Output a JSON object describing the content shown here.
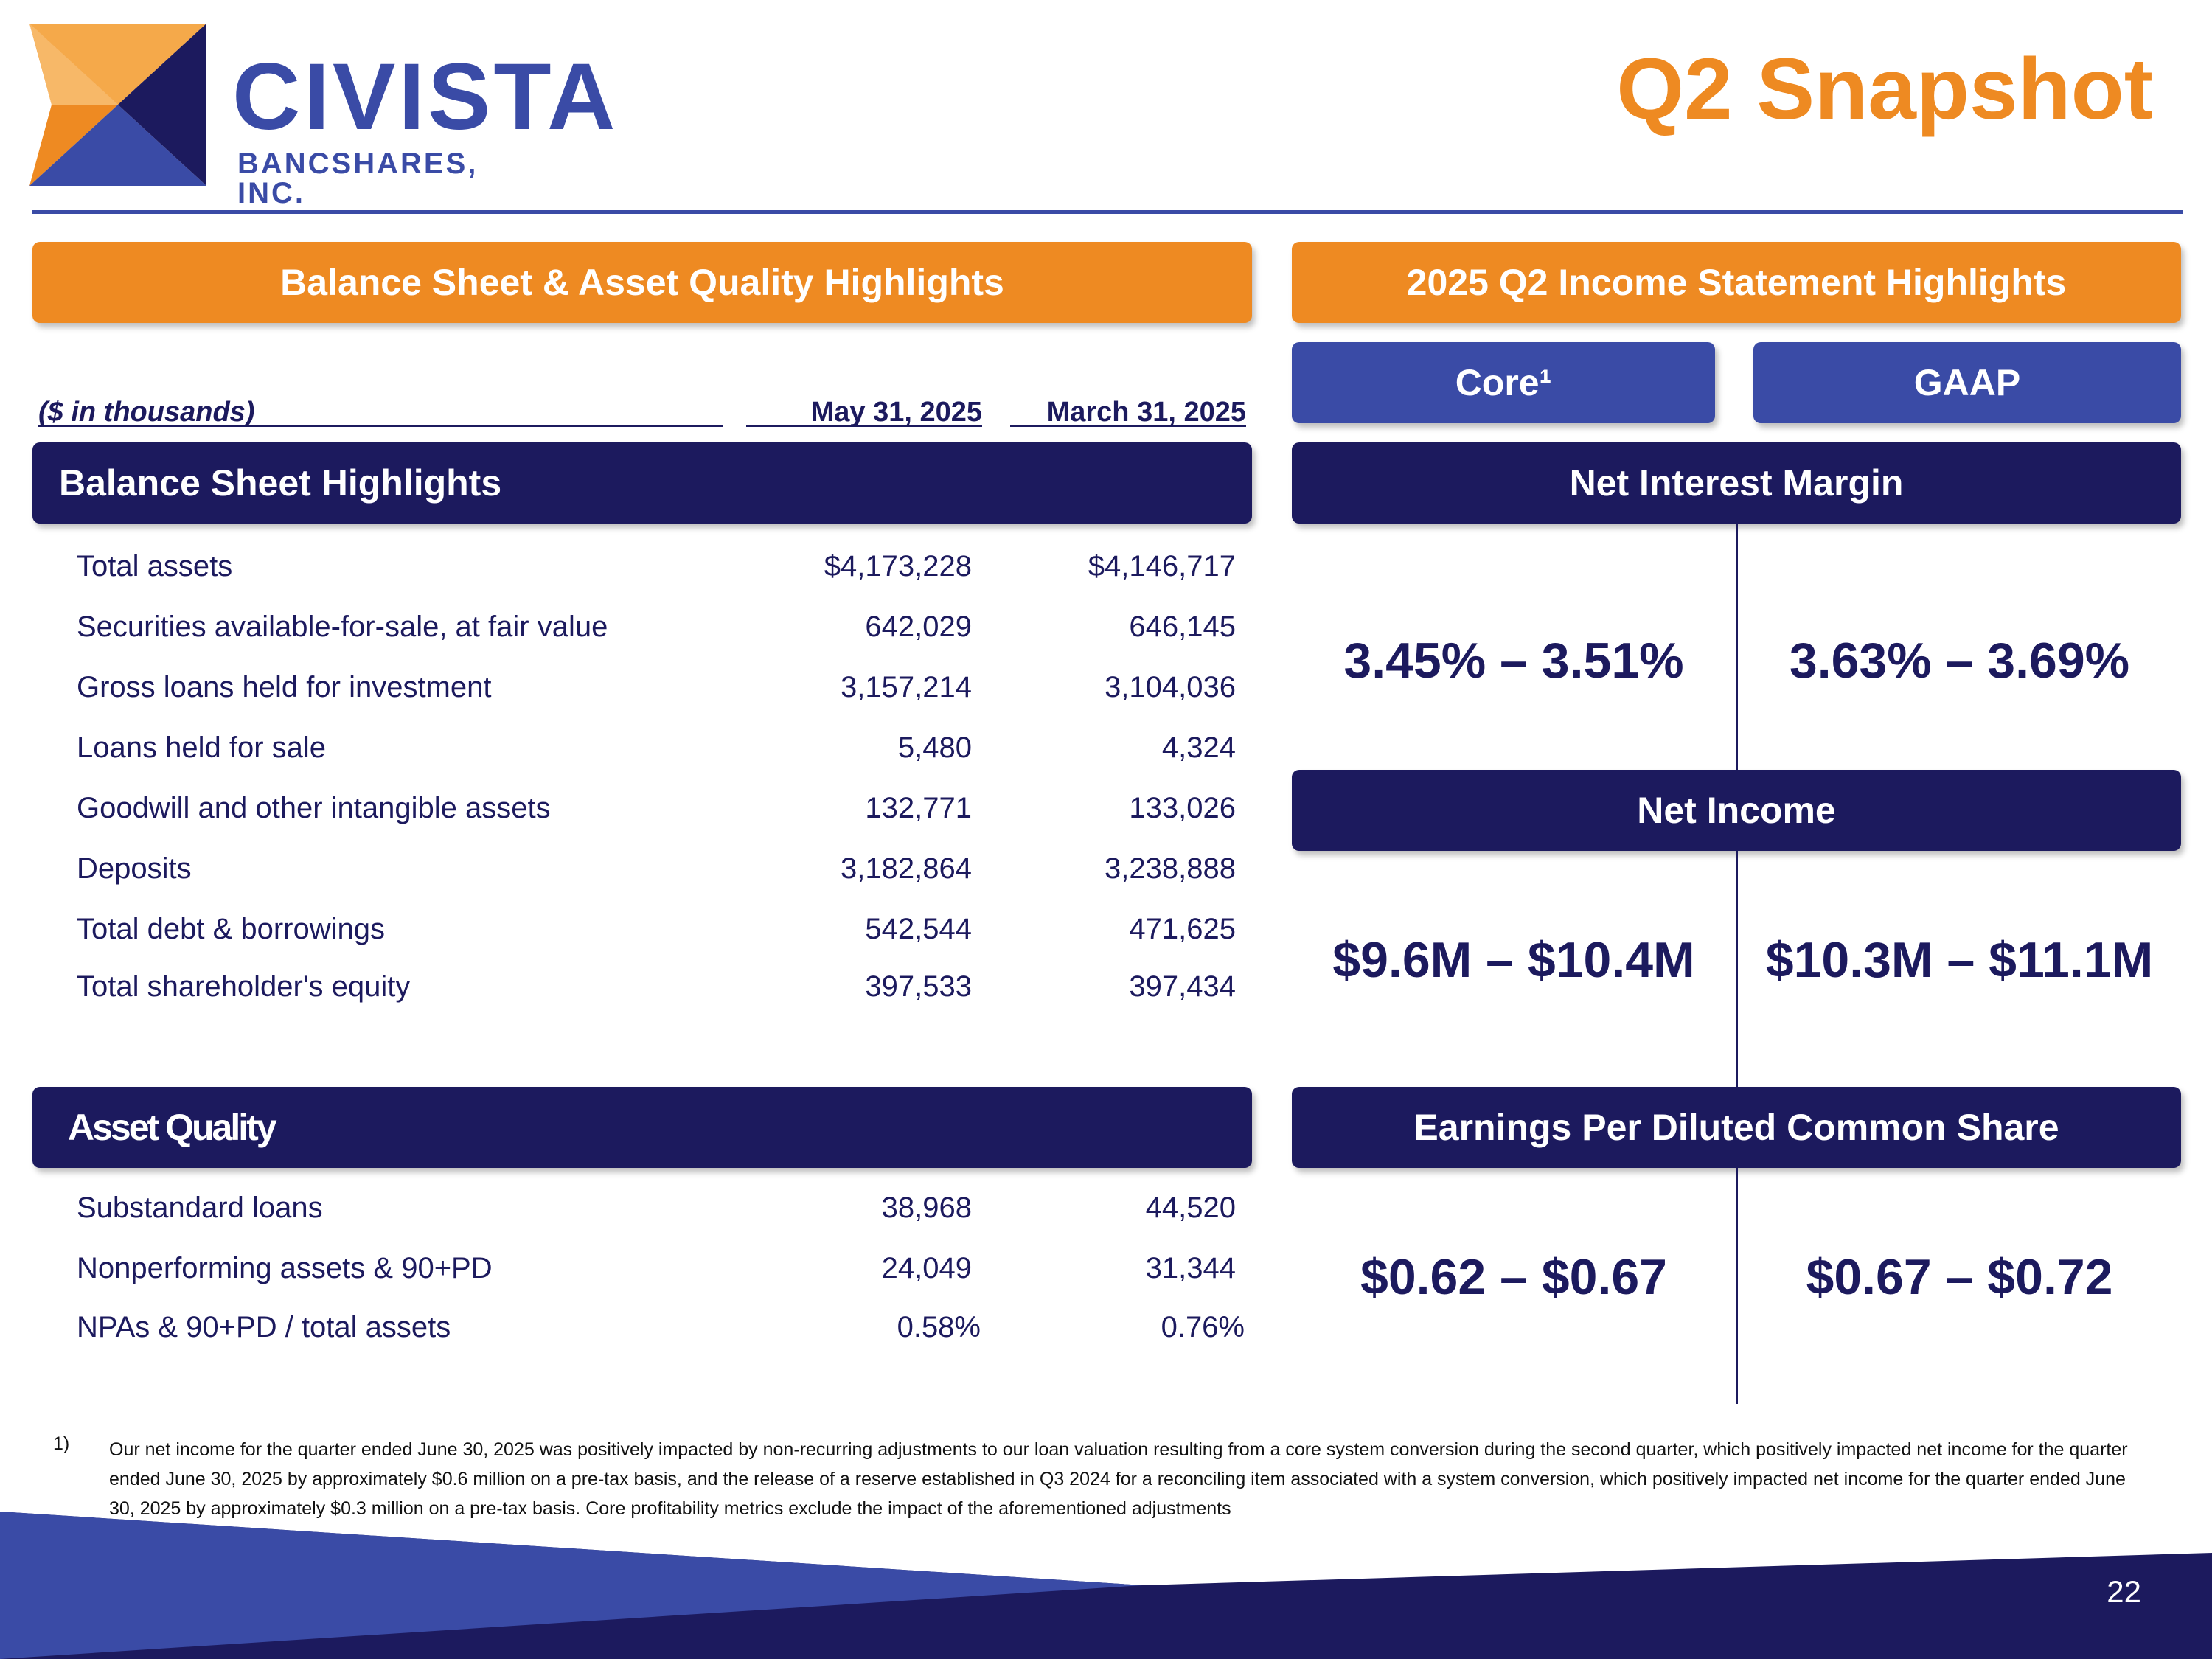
{
  "header": {
    "brand_name": "CIVISTA",
    "brand_sub": "BANCSHARES, INC.",
    "title": "Q2 Snapshot"
  },
  "left": {
    "banner": "Balance Sheet & Asset Quality Highlights",
    "units_label": "($ in thousands)",
    "col1": "May 31, 2025",
    "col2": "March 31, 2025",
    "balance_banner": "Balance Sheet Highlights",
    "balance_rows": [
      {
        "label": "Total assets",
        "v1": "$4,173,228",
        "v2": "$4,146,717"
      },
      {
        "label": "Securities available-for-sale, at fair value",
        "v1": "642,029",
        "v2": "646,145"
      },
      {
        "label": "Gross loans held for investment",
        "v1": "3,157,214",
        "v2": "3,104,036"
      },
      {
        "label": "Loans held for sale",
        "v1": "5,480",
        "v2": "4,324"
      },
      {
        "label": "Goodwill and other intangible assets",
        "v1": "132,771",
        "v2": "133,026"
      },
      {
        "label": "Deposits",
        "v1": "3,182,864",
        "v2": "3,238,888"
      },
      {
        "label": "Total debt & borrowings",
        "v1": "542,544",
        "v2": "471,625"
      },
      {
        "label": "Total shareholder's equity",
        "v1": "397,533",
        "v2": "397,434"
      }
    ],
    "asset_banner": "Asset Quality",
    "asset_rows": [
      {
        "label": "Substandard loans",
        "v1": "38,968",
        "v2": "44,520"
      },
      {
        "label": "Nonperforming assets & 90+PD",
        "v1": "24,049",
        "v2": "31,344"
      },
      {
        "label": "NPAs & 90+PD / total assets",
        "v1": "0.58%",
        "v2": "0.76%"
      }
    ]
  },
  "right": {
    "banner": "2025 Q2 Income Statement Highlights",
    "core_label": "Core¹",
    "gaap_label": "GAAP",
    "nim_banner": "Net Interest Margin",
    "nim_core": "3.45% – 3.51%",
    "nim_gaap": "3.63% – 3.69%",
    "ni_banner": "Net Income",
    "ni_core": "$9.6M – $10.4M",
    "ni_gaap": "$10.3M – $11.1M",
    "eps_banner": "Earnings Per Diluted Common Share",
    "eps_core": "$0.62 – $0.67",
    "eps_gaap": "$0.67 – $0.72"
  },
  "footnote": {
    "number": "1)",
    "text": "Our net income for the quarter ended June 30, 2025 was positively impacted by non-recurring adjustments to our loan valuation resulting from a core system conversion during the second quarter, which positively impacted net income for the quarter ended June 30, 2025 by approximately $0.6 million on a pre-tax basis, and the release of a reserve established in Q3 2024 for a reconciling item associated with a system conversion, which positively impacted net income for the quarter ended June 30, 2025 by approximately $0.3 million on a pre-tax basis. Core profitability metrics exclude the impact of the aforementioned adjustments"
  },
  "page_number": "22",
  "colors": {
    "orange": "#ee8a22",
    "navy": "#1c1a5e",
    "blue": "#3a4ba6"
  }
}
